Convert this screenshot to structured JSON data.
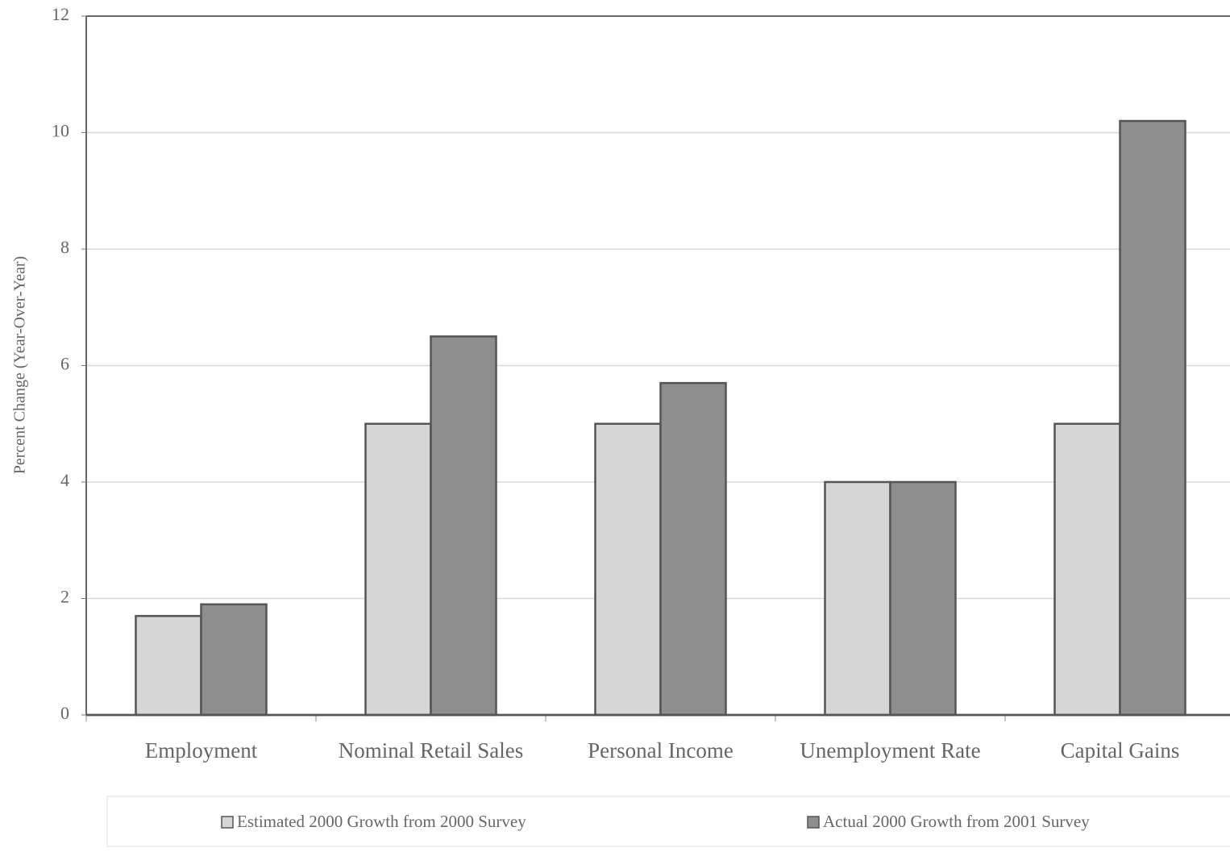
{
  "chart_data": {
    "type": "bar",
    "y_label": "Percent Change (Year-Over-Year)",
    "categories": [
      "Employment",
      "Nominal Retail Sales",
      "Personal Income",
      "Unemployment Rate",
      "Capital Gains"
    ],
    "series": [
      {
        "name": "Estimated 2000 Growth from 2000 Survey",
        "color": "#d6d6d6",
        "values": [
          1.7,
          5.0,
          5.0,
          4.0,
          5.0
        ]
      },
      {
        "name": "Actual 2000 Growth from 2001 Survey",
        "color": "#8e8e8e",
        "values": [
          1.9,
          6.5,
          5.7,
          4.0,
          10.2
        ]
      }
    ],
    "ylim": [
      0,
      12
    ],
    "yticks": [
      0,
      2,
      4,
      6,
      8,
      10,
      12
    ],
    "grid": true
  }
}
